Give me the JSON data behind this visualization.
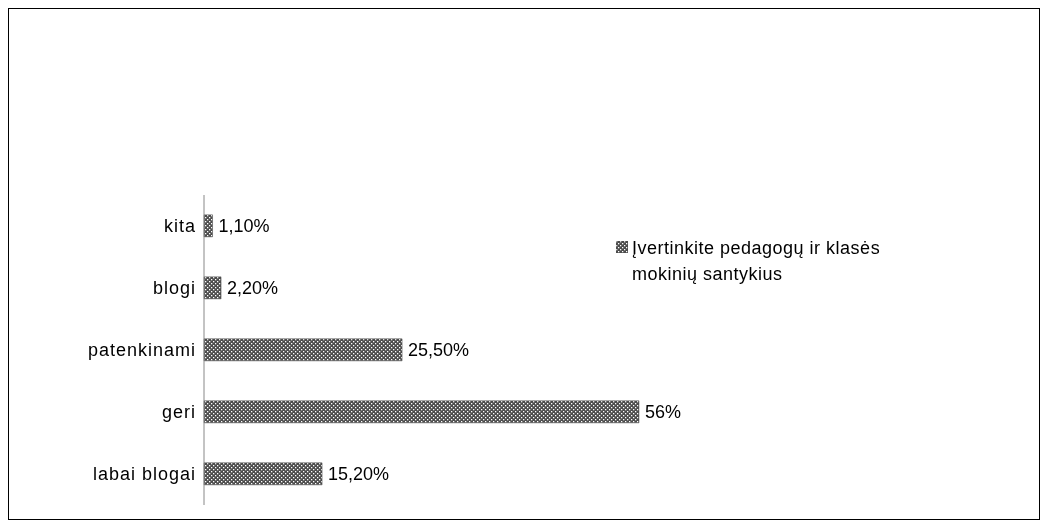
{
  "chart_data": {
    "type": "bar",
    "orientation": "horizontal",
    "categories": [
      "kita",
      "blogi",
      "patenkinami",
      "geri",
      "labai blogai"
    ],
    "series": [
      {
        "name": "Įvertinkite pedagogų ir klasės mokinių santykius",
        "color": "#4d4d4d",
        "values": [
          1.1,
          2.2,
          25.5,
          56,
          15.2
        ],
        "value_labels": [
          "1,10%",
          "2,20%",
          "25,50%",
          "56%",
          "15,20%"
        ]
      }
    ],
    "legend": "right",
    "grid": false
  }
}
